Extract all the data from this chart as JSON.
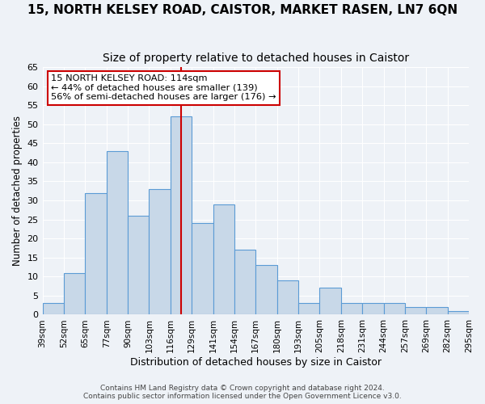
{
  "title": "15, NORTH KELSEY ROAD, CAISTOR, MARKET RASEN, LN7 6QN",
  "subtitle": "Size of property relative to detached houses in Caistor",
  "xlabel": "Distribution of detached houses by size in Caistor",
  "ylabel": "Number of detached properties",
  "bar_labels": [
    "39sqm",
    "52sqm",
    "65sqm",
    "77sqm",
    "90sqm",
    "103sqm",
    "116sqm",
    "129sqm",
    "141sqm",
    "154sqm",
    "167sqm",
    "180sqm",
    "193sqm",
    "205sqm",
    "218sqm",
    "231sqm",
    "244sqm",
    "257sqm",
    "269sqm",
    "282sqm",
    "295sqm"
  ],
  "bar_values": [
    3,
    11,
    32,
    43,
    26,
    33,
    52,
    24,
    29,
    17,
    13,
    9,
    3,
    7,
    3,
    3,
    3,
    2,
    2,
    1
  ],
  "bar_color": "#c8d8e8",
  "bar_edge_color": "#5b9bd5",
  "ylim": [
    0,
    65
  ],
  "yticks": [
    0,
    5,
    10,
    15,
    20,
    25,
    30,
    35,
    40,
    45,
    50,
    55,
    60,
    65
  ],
  "vline_color": "#cc0000",
  "vline_position": 6.5,
  "annotation_title": "15 NORTH KELSEY ROAD: 114sqm",
  "annotation_line1": "← 44% of detached houses are smaller (139)",
  "annotation_line2": "56% of semi-detached houses are larger (176) →",
  "annotation_box_color": "#ffffff",
  "annotation_box_edge": "#cc0000",
  "footer1": "Contains HM Land Registry data © Crown copyright and database right 2024.",
  "footer2": "Contains public sector information licensed under the Open Government Licence v3.0.",
  "background_color": "#eef2f7",
  "plot_background": "#eef2f7",
  "grid_color": "#ffffff",
  "title_fontsize": 11,
  "subtitle_fontsize": 10
}
